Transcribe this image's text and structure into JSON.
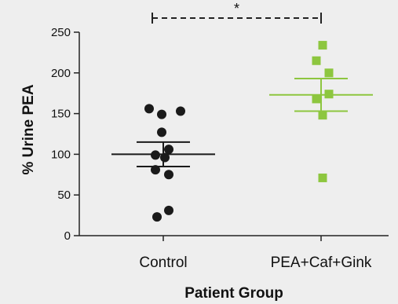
{
  "chart_data": {
    "type": "scatter",
    "xlabel": "Patient Group",
    "ylabel": "% Urine PEA",
    "ylim": [
      0,
      250
    ],
    "yticks": [
      0,
      50,
      100,
      150,
      200,
      250
    ],
    "categories": [
      "Control",
      "PEA+Caf+Gink"
    ],
    "grid": false,
    "series": [
      {
        "category": "Control",
        "color": "#1a1a1a",
        "marker": "circle",
        "values": [
          156,
          153,
          149,
          127,
          106,
          99,
          96,
          81,
          75,
          31,
          23
        ],
        "mean": 100,
        "sem_upper": 115,
        "sem_lower": 85
      },
      {
        "category": "PEA+Caf+Gink",
        "color": "#8dc63f",
        "marker": "square",
        "values": [
          234,
          215,
          200,
          174,
          168,
          148,
          71
        ],
        "mean": 173,
        "sem_upper": 193,
        "sem_lower": 153
      }
    ],
    "annotations": [
      {
        "text": "*",
        "from": "Control",
        "to": "PEA+Caf+Gink",
        "style": "dashed-bracket"
      }
    ]
  }
}
